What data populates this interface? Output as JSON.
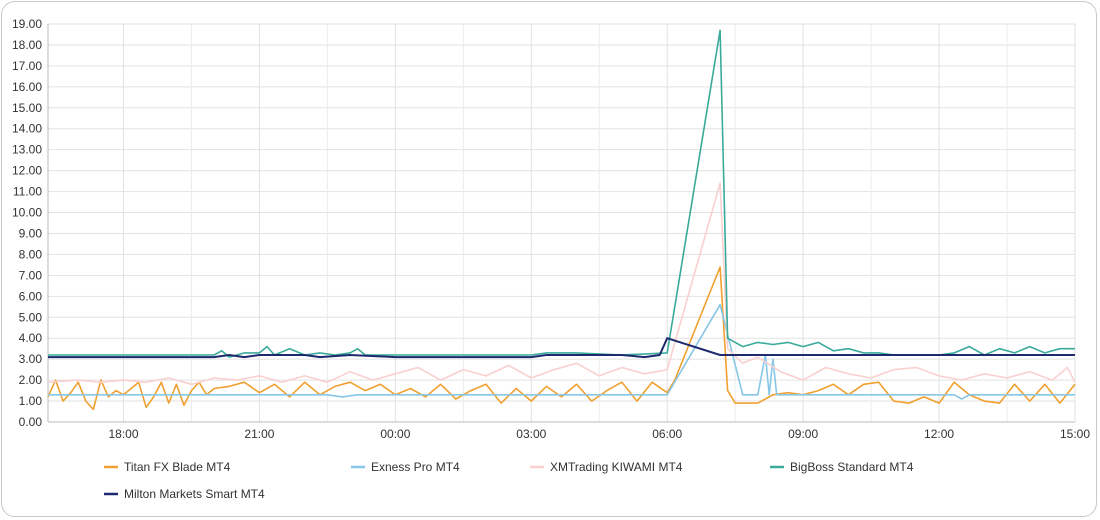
{
  "chart_data": {
    "type": "line",
    "title": "",
    "xlabel": "",
    "ylabel": "",
    "ylim": [
      0,
      19
    ],
    "grid": true,
    "legend_position": "bottom",
    "x_tick_labels": [
      "18:00",
      "21:00",
      "00:00",
      "03:00",
      "06:00",
      "09:00",
      "12:00",
      "15:00"
    ],
    "x_tick_times": [
      "18:00",
      "21:00",
      "00:00",
      "03:00",
      "06:00",
      "09:00",
      "12:00",
      "15:00"
    ],
    "x_start": "16:20",
    "y_tick_labels": [
      "0.00",
      "1.00",
      "2.00",
      "3.00",
      "4.00",
      "5.00",
      "6.00",
      "7.00",
      "8.00",
      "9.00",
      "10.00",
      "11.00",
      "12.00",
      "13.00",
      "14.00",
      "15.00",
      "16.00",
      "17.00",
      "18.00",
      "19.00"
    ],
    "series": [
      {
        "name": "Titan FX Blade MT4",
        "color": "#f0a030",
        "points": [
          [
            "16:20",
            1.2
          ],
          [
            "16:30",
            2.0
          ],
          [
            "16:40",
            1.0
          ],
          [
            "16:50",
            1.4
          ],
          [
            "17:00",
            1.9
          ],
          [
            "17:10",
            1.0
          ],
          [
            "17:20",
            0.6
          ],
          [
            "17:30",
            2.0
          ],
          [
            "17:40",
            1.2
          ],
          [
            "17:50",
            1.5
          ],
          [
            "18:00",
            1.3
          ],
          [
            "18:10",
            1.6
          ],
          [
            "18:20",
            1.9
          ],
          [
            "18:30",
            0.7
          ],
          [
            "18:40",
            1.2
          ],
          [
            "18:50",
            1.9
          ],
          [
            "19:00",
            0.9
          ],
          [
            "19:10",
            1.8
          ],
          [
            "19:20",
            0.8
          ],
          [
            "19:30",
            1.5
          ],
          [
            "19:40",
            1.9
          ],
          [
            "19:50",
            1.3
          ],
          [
            "20:00",
            1.6
          ],
          [
            "20:20",
            1.7
          ],
          [
            "20:40",
            1.9
          ],
          [
            "21:00",
            1.4
          ],
          [
            "21:20",
            1.8
          ],
          [
            "21:40",
            1.2
          ],
          [
            "22:00",
            1.9
          ],
          [
            "22:20",
            1.3
          ],
          [
            "22:40",
            1.7
          ],
          [
            "23:00",
            1.9
          ],
          [
            "23:20",
            1.5
          ],
          [
            "23:40",
            1.8
          ],
          [
            "00:00",
            1.3
          ],
          [
            "00:20",
            1.6
          ],
          [
            "00:40",
            1.2
          ],
          [
            "01:00",
            1.8
          ],
          [
            "01:20",
            1.1
          ],
          [
            "01:40",
            1.5
          ],
          [
            "02:00",
            1.8
          ],
          [
            "02:20",
            0.9
          ],
          [
            "02:40",
            1.6
          ],
          [
            "03:00",
            1.0
          ],
          [
            "03:20",
            1.7
          ],
          [
            "03:40",
            1.2
          ],
          [
            "04:00",
            1.8
          ],
          [
            "04:20",
            1.0
          ],
          [
            "04:40",
            1.5
          ],
          [
            "05:00",
            1.9
          ],
          [
            "05:20",
            1.0
          ],
          [
            "05:40",
            1.9
          ],
          [
            "06:00",
            1.4
          ],
          [
            "06:10",
            2.0
          ],
          [
            "07:10",
            7.4
          ],
          [
            "07:20",
            1.5
          ],
          [
            "07:30",
            0.9
          ],
          [
            "08:00",
            0.9
          ],
          [
            "08:20",
            1.3
          ],
          [
            "08:40",
            1.4
          ],
          [
            "09:00",
            1.3
          ],
          [
            "09:20",
            1.5
          ],
          [
            "09:40",
            1.8
          ],
          [
            "10:00",
            1.3
          ],
          [
            "10:20",
            1.8
          ],
          [
            "10:40",
            1.9
          ],
          [
            "11:00",
            1.0
          ],
          [
            "11:20",
            0.9
          ],
          [
            "11:40",
            1.2
          ],
          [
            "12:00",
            0.9
          ],
          [
            "12:20",
            1.9
          ],
          [
            "12:40",
            1.3
          ],
          [
            "13:00",
            1.0
          ],
          [
            "13:20",
            0.9
          ],
          [
            "13:40",
            1.8
          ],
          [
            "14:00",
            1.0
          ],
          [
            "14:20",
            1.8
          ],
          [
            "14:40",
            0.9
          ],
          [
            "15:00",
            1.8
          ]
        ]
      },
      {
        "name": "Exness Pro MT4",
        "color": "#87c6e6",
        "points": [
          [
            "16:20",
            1.3
          ],
          [
            "22:30",
            1.3
          ],
          [
            "22:50",
            1.2
          ],
          [
            "23:10",
            1.3
          ],
          [
            "06:00",
            1.3
          ],
          [
            "07:10",
            5.6
          ],
          [
            "07:40",
            1.3
          ],
          [
            "08:00",
            1.3
          ],
          [
            "08:10",
            3.2
          ],
          [
            "08:15",
            1.3
          ],
          [
            "08:20",
            3.0
          ],
          [
            "08:25",
            1.3
          ],
          [
            "09:00",
            1.3
          ],
          [
            "12:20",
            1.3
          ],
          [
            "12:30",
            1.1
          ],
          [
            "12:40",
            1.3
          ],
          [
            "15:00",
            1.3
          ]
        ]
      },
      {
        "name": "XMTrading KIWAMI MT4",
        "color": "#f9d0cf",
        "points": [
          [
            "16:20",
            1.9
          ],
          [
            "17:00",
            2.0
          ],
          [
            "17:30",
            1.9
          ],
          [
            "18:00",
            2.0
          ],
          [
            "18:30",
            1.9
          ],
          [
            "19:00",
            2.1
          ],
          [
            "19:30",
            1.8
          ],
          [
            "20:00",
            2.1
          ],
          [
            "20:30",
            2.0
          ],
          [
            "21:00",
            2.2
          ],
          [
            "21:30",
            1.9
          ],
          [
            "22:00",
            2.2
          ],
          [
            "22:30",
            1.9
          ],
          [
            "23:00",
            2.4
          ],
          [
            "23:30",
            2.0
          ],
          [
            "00:00",
            2.3
          ],
          [
            "00:30",
            2.6
          ],
          [
            "01:00",
            2.0
          ],
          [
            "01:30",
            2.5
          ],
          [
            "02:00",
            2.2
          ],
          [
            "02:30",
            2.7
          ],
          [
            "03:00",
            2.1
          ],
          [
            "03:30",
            2.5
          ],
          [
            "04:00",
            2.8
          ],
          [
            "04:30",
            2.2
          ],
          [
            "05:00",
            2.6
          ],
          [
            "05:30",
            2.3
          ],
          [
            "06:00",
            2.5
          ],
          [
            "07:10",
            11.4
          ],
          [
            "07:20",
            3.5
          ],
          [
            "07:40",
            2.8
          ],
          [
            "08:00",
            3.1
          ],
          [
            "08:30",
            2.4
          ],
          [
            "09:00",
            2.0
          ],
          [
            "09:30",
            2.6
          ],
          [
            "10:00",
            2.3
          ],
          [
            "10:30",
            2.1
          ],
          [
            "11:00",
            2.5
          ],
          [
            "11:30",
            2.6
          ],
          [
            "12:00",
            2.2
          ],
          [
            "12:30",
            2.0
          ],
          [
            "13:00",
            2.3
          ],
          [
            "13:30",
            2.1
          ],
          [
            "14:00",
            2.4
          ],
          [
            "14:30",
            2.0
          ],
          [
            "14:50",
            2.6
          ],
          [
            "15:00",
            1.9
          ]
        ]
      },
      {
        "name": "BigBoss Standard MT4",
        "color": "#3aaa9a",
        "points": [
          [
            "16:20",
            3.2
          ],
          [
            "20:00",
            3.2
          ],
          [
            "20:10",
            3.4
          ],
          [
            "20:20",
            3.1
          ],
          [
            "20:40",
            3.3
          ],
          [
            "21:00",
            3.3
          ],
          [
            "21:10",
            3.6
          ],
          [
            "21:20",
            3.2
          ],
          [
            "21:40",
            3.5
          ],
          [
            "22:00",
            3.2
          ],
          [
            "22:20",
            3.3
          ],
          [
            "22:40",
            3.2
          ],
          [
            "23:00",
            3.3
          ],
          [
            "23:10",
            3.5
          ],
          [
            "23:20",
            3.2
          ],
          [
            "23:40",
            3.2
          ],
          [
            "00:00",
            3.2
          ],
          [
            "03:00",
            3.2
          ],
          [
            "03:20",
            3.3
          ],
          [
            "04:00",
            3.3
          ],
          [
            "05:00",
            3.2
          ],
          [
            "06:00",
            3.3
          ],
          [
            "07:10",
            18.7
          ],
          [
            "07:20",
            4.0
          ],
          [
            "07:40",
            3.6
          ],
          [
            "08:00",
            3.8
          ],
          [
            "08:20",
            3.7
          ],
          [
            "08:40",
            3.8
          ],
          [
            "09:00",
            3.6
          ],
          [
            "09:20",
            3.8
          ],
          [
            "09:40",
            3.4
          ],
          [
            "10:00",
            3.5
          ],
          [
            "10:20",
            3.3
          ],
          [
            "10:40",
            3.3
          ],
          [
            "11:00",
            3.2
          ],
          [
            "12:00",
            3.2
          ],
          [
            "12:20",
            3.3
          ],
          [
            "12:40",
            3.6
          ],
          [
            "13:00",
            3.2
          ],
          [
            "13:20",
            3.5
          ],
          [
            "13:40",
            3.3
          ],
          [
            "14:00",
            3.6
          ],
          [
            "14:20",
            3.3
          ],
          [
            "14:40",
            3.5
          ],
          [
            "15:00",
            3.5
          ]
        ]
      },
      {
        "name": "Milton Markets Smart MT4",
        "color": "#1f2a6e",
        "points": [
          [
            "16:20",
            3.1
          ],
          [
            "20:00",
            3.1
          ],
          [
            "20:20",
            3.2
          ],
          [
            "20:40",
            3.1
          ],
          [
            "21:00",
            3.2
          ],
          [
            "22:00",
            3.2
          ],
          [
            "22:20",
            3.1
          ],
          [
            "23:00",
            3.2
          ],
          [
            "00:00",
            3.1
          ],
          [
            "03:00",
            3.1
          ],
          [
            "03:20",
            3.2
          ],
          [
            "05:00",
            3.2
          ],
          [
            "05:30",
            3.1
          ],
          [
            "05:50",
            3.2
          ],
          [
            "06:00",
            4.0
          ],
          [
            "07:10",
            3.2
          ],
          [
            "12:00",
            3.2
          ],
          [
            "13:00",
            3.2
          ],
          [
            "14:00",
            3.2
          ],
          [
            "15:00",
            3.2
          ]
        ]
      }
    ]
  }
}
